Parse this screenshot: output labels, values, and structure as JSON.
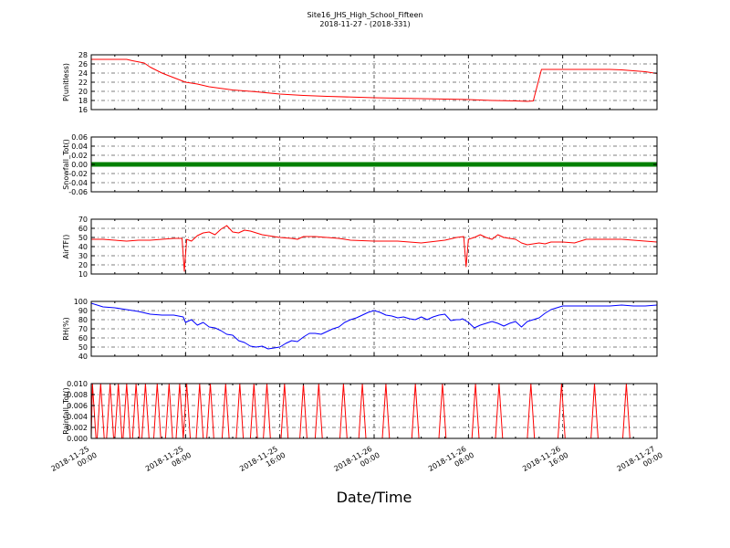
{
  "chart_data": {
    "type": "line",
    "title": "Site16_JHS_High_School_Fifteen",
    "subtitle": "2018-11-27 - (2018-331)",
    "xlabel": "Date/Time",
    "x_range_hours": [
      0,
      48
    ],
    "x_ticks": [
      {
        "hour": 0,
        "label": [
          "2018-11-25",
          "00:00"
        ]
      },
      {
        "hour": 8,
        "label": [
          "2018-11-25",
          "08:00"
        ]
      },
      {
        "hour": 16,
        "label": [
          "2018-11-25",
          "16:00"
        ]
      },
      {
        "hour": 24,
        "label": [
          "2018-11-26",
          "00:00"
        ]
      },
      {
        "hour": 32,
        "label": [
          "2018-11-26",
          "08:00"
        ]
      },
      {
        "hour": 40,
        "label": [
          "2018-11-26",
          "16:00"
        ]
      },
      {
        "hour": 48,
        "label": [
          "2018-11-27",
          "00:00"
        ]
      }
    ],
    "grid": true,
    "panels": [
      {
        "ylabel": "P(unitless)",
        "color": "#ff0000",
        "ylim": [
          16,
          28
        ],
        "yticks": [
          16,
          18,
          20,
          22,
          24,
          26,
          28
        ],
        "tick_decimals": 0,
        "x": [
          0,
          3,
          3.5,
          4.5,
          5,
          6,
          7,
          8,
          9,
          10,
          12,
          14,
          16,
          18,
          20,
          24,
          28,
          32,
          34,
          36,
          37,
          37.5,
          38.2,
          39,
          40,
          42,
          44,
          45,
          46,
          47,
          48
        ],
        "y": [
          27,
          27,
          26.7,
          26.2,
          25.3,
          24,
          23,
          22,
          21.6,
          21,
          20.3,
          19.9,
          19.4,
          19.1,
          18.9,
          18.6,
          18.4,
          18.2,
          18.0,
          17.9,
          17.8,
          17.9,
          24.8,
          24.8,
          24.8,
          24.8,
          24.8,
          24.7,
          24.5,
          24.3,
          23.9
        ]
      },
      {
        "ylabel": "Snowfall_Tot()",
        "color": "#008000",
        "ylim": [
          -0.06,
          0.06
        ],
        "yticks": [
          -0.06,
          -0.04,
          -0.02,
          0.0,
          0.02,
          0.04,
          0.06
        ],
        "tick_decimals": 2,
        "line_width": 5,
        "x": [
          0,
          48
        ],
        "y": [
          0,
          0
        ]
      },
      {
        "ylabel": "AirTF()",
        "color": "#ff0000",
        "ylim": [
          10,
          70
        ],
        "yticks": [
          10,
          20,
          30,
          40,
          50,
          60,
          70
        ],
        "tick_decimals": 0,
        "x": [
          0,
          1,
          2,
          3,
          4,
          5,
          6,
          7,
          7.7,
          7.9,
          8.1,
          8.5,
          9,
          9.5,
          10,
          10.5,
          11,
          11.5,
          12,
          12.5,
          13,
          13.5,
          14,
          14.5,
          15,
          16,
          17,
          17.5,
          18,
          19,
          20,
          21,
          22,
          24,
          26,
          28,
          30,
          31,
          31.6,
          31.8,
          32.0,
          32.5,
          33,
          33.5,
          34,
          34.5,
          35,
          35.5,
          36,
          36.5,
          37,
          37.5,
          38,
          38.5,
          39,
          40,
          41,
          42,
          43,
          44,
          45,
          46,
          47,
          48
        ],
        "y": [
          48,
          48,
          47,
          46,
          47,
          47,
          48,
          49,
          49,
          13,
          48,
          46,
          52,
          55,
          56,
          53,
          59,
          63,
          56,
          55,
          58,
          57,
          55,
          53,
          52,
          50,
          49,
          48,
          51,
          51,
          50,
          49,
          47,
          46,
          46,
          44,
          47,
          50,
          51,
          18,
          48,
          50,
          53,
          50,
          48,
          53,
          50,
          49,
          48,
          44,
          42,
          43,
          44,
          43,
          45,
          45,
          44,
          48,
          48,
          48,
          48,
          47,
          46,
          45
        ]
      },
      {
        "ylabel": "RH(%)",
        "color": "#0000ff",
        "ylim": [
          40,
          100
        ],
        "yticks": [
          40,
          50,
          60,
          70,
          80,
          90,
          100
        ],
        "tick_decimals": 0,
        "x": [
          0,
          1,
          2,
          3,
          4,
          5,
          6,
          7,
          7.8,
          8,
          8.5,
          9,
          9.5,
          10,
          10.5,
          11,
          11.5,
          12,
          12.5,
          13,
          13.5,
          14,
          14.5,
          15,
          15.5,
          16,
          16.5,
          17,
          17.5,
          18,
          18.5,
          19,
          19.5,
          20,
          20.5,
          21,
          21.5,
          22,
          22.5,
          23,
          23.5,
          24,
          24.5,
          25,
          25.5,
          26,
          26.5,
          27,
          27.5,
          28,
          28.5,
          29,
          29.5,
          30,
          30.5,
          31,
          31.3,
          31.5,
          32,
          32.5,
          33,
          33.5,
          34,
          34.5,
          35,
          35.5,
          36,
          36.5,
          37,
          37.5,
          38,
          38.5,
          39,
          39.5,
          40,
          41,
          42,
          43,
          44,
          45,
          46,
          47,
          48
        ],
        "y": [
          98,
          94,
          93,
          91,
          89,
          86,
          85,
          85,
          83,
          77,
          80,
          74,
          77,
          72,
          71,
          68,
          64,
          63,
          57,
          55,
          51,
          50,
          51,
          48,
          49,
          50,
          54,
          57,
          56,
          61,
          65,
          65,
          64,
          67,
          70,
          72,
          77,
          80,
          82,
          85,
          88,
          90,
          88,
          85,
          84,
          82,
          83,
          81,
          80,
          83,
          80,
          83,
          85,
          86,
          79,
          80,
          80,
          81,
          77,
          71,
          74,
          76,
          78,
          76,
          73,
          76,
          78,
          72,
          78,
          80,
          82,
          87,
          91,
          93,
          95,
          95,
          95,
          95,
          95,
          96,
          95,
          95,
          96
        ]
      },
      {
        "ylabel": "Rainfall_Tot()",
        "color": "#ff0000",
        "ylim": [
          0,
          0.01
        ],
        "yticks": [
          0.0,
          0.002,
          0.004,
          0.006,
          0.008,
          0.01
        ],
        "tick_decimals": 3,
        "spikes": [
          0.1,
          0.8,
          1.6,
          2.3,
          3.0,
          3.8,
          4.6,
          5.6,
          6.6,
          7.5,
          8.1,
          9.2,
          10.1,
          11.4,
          12.6,
          13.8,
          14.9,
          16.4,
          18.0,
          19.3,
          21.4,
          23.0,
          25.0,
          27.5,
          29.8,
          32.6,
          34.6,
          37.3,
          39.9,
          42.7,
          45.4
        ]
      }
    ]
  }
}
